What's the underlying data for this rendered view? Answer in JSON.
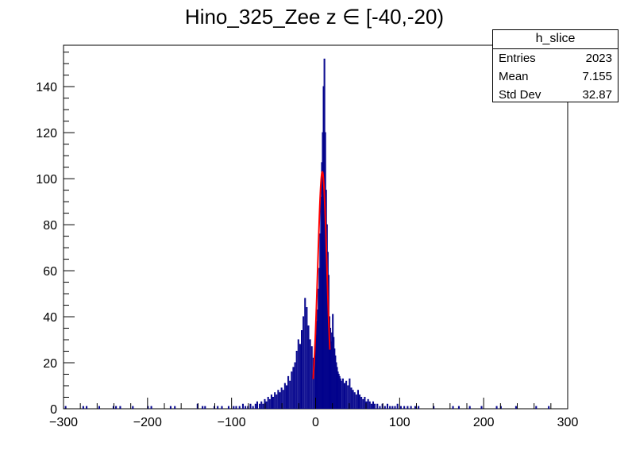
{
  "chart_data": {
    "type": "histogram",
    "title": "Hino_325_Zee z  ∈ [-40,-20)",
    "xlim": [
      -300,
      300
    ],
    "ylim": [
      0,
      158
    ],
    "x_ticks": [
      -300,
      -200,
      -100,
      0,
      100,
      200,
      300
    ],
    "y_ticks": [
      0,
      20,
      40,
      60,
      80,
      100,
      120,
      140
    ],
    "bin_width": 1,
    "line_color": "#00008b",
    "fit_color": "#ff0000",
    "grid": false,
    "legend_position": "top-right",
    "series": [
      {
        "kind": "histogram",
        "bins": [
          [
            -298,
            1
          ],
          [
            -277,
            1
          ],
          [
            -273,
            1
          ],
          [
            -258,
            1
          ],
          [
            -241,
            1
          ],
          [
            -238,
            1
          ],
          [
            -233,
            1
          ],
          [
            -218,
            1
          ],
          [
            -200,
            1
          ],
          [
            -196,
            1
          ],
          [
            -173,
            1
          ],
          [
            -168,
            1
          ],
          [
            -141,
            2
          ],
          [
            -135,
            1
          ],
          [
            -132,
            1
          ],
          [
            -121,
            1
          ],
          [
            -117,
            1
          ],
          [
            -112,
            1
          ],
          [
            -104,
            1
          ],
          [
            -98,
            1
          ],
          [
            -95,
            1
          ],
          [
            -91,
            1
          ],
          [
            -87,
            2
          ],
          [
            -84,
            1
          ],
          [
            -81,
            1
          ],
          [
            -78,
            2
          ],
          [
            -75,
            1
          ],
          [
            -72,
            2
          ],
          [
            -70,
            3
          ],
          [
            -67,
            2
          ],
          [
            -65,
            3
          ],
          [
            -63,
            2
          ],
          [
            -61,
            4
          ],
          [
            -59,
            3
          ],
          [
            -57,
            5
          ],
          [
            -55,
            4
          ],
          [
            -53,
            6
          ],
          [
            -51,
            5
          ],
          [
            -49,
            7
          ],
          [
            -47,
            6
          ],
          [
            -45,
            8
          ],
          [
            -43,
            7
          ],
          [
            -41,
            9
          ],
          [
            -39,
            8
          ],
          [
            -37,
            11
          ],
          [
            -35,
            10
          ],
          [
            -33,
            14
          ],
          [
            -31,
            12
          ],
          [
            -29,
            16
          ],
          [
            -27,
            18
          ],
          [
            -25,
            20
          ],
          [
            -23,
            25
          ],
          [
            -21,
            30
          ],
          [
            -19,
            28
          ],
          [
            -17,
            34
          ],
          [
            -15,
            40
          ],
          [
            -13,
            48
          ],
          [
            -11,
            44
          ],
          [
            -9,
            36
          ],
          [
            -7,
            30
          ],
          [
            -5,
            27
          ],
          [
            -3,
            22
          ],
          [
            -1,
            28
          ],
          [
            0,
            32
          ],
          [
            1,
            38
          ],
          [
            2,
            43
          ],
          [
            3,
            52
          ],
          [
            4,
            61
          ],
          [
            5,
            76
          ],
          [
            6,
            92
          ],
          [
            7,
            107
          ],
          [
            8,
            120
          ],
          [
            9,
            140
          ],
          [
            10,
            152
          ],
          [
            11,
            120
          ],
          [
            12,
            95
          ],
          [
            13,
            80
          ],
          [
            14,
            68
          ],
          [
            15,
            58
          ],
          [
            16,
            40
          ],
          [
            17,
            35
          ],
          [
            18,
            29
          ],
          [
            19,
            33
          ],
          [
            20,
            41
          ],
          [
            21,
            31
          ],
          [
            22,
            26
          ],
          [
            23,
            23
          ],
          [
            24,
            20
          ],
          [
            25,
            18
          ],
          [
            26,
            16
          ],
          [
            27,
            15
          ],
          [
            28,
            14
          ],
          [
            29,
            13
          ],
          [
            30,
            12
          ],
          [
            32,
            13
          ],
          [
            34,
            11
          ],
          [
            36,
            12
          ],
          [
            38,
            10
          ],
          [
            40,
            13
          ],
          [
            42,
            9
          ],
          [
            44,
            8
          ],
          [
            46,
            7
          ],
          [
            48,
            6
          ],
          [
            50,
            8
          ],
          [
            52,
            6
          ],
          [
            54,
            5
          ],
          [
            56,
            4
          ],
          [
            58,
            5
          ],
          [
            60,
            3
          ],
          [
            62,
            4
          ],
          [
            64,
            3
          ],
          [
            66,
            2
          ],
          [
            68,
            3
          ],
          [
            70,
            2
          ],
          [
            73,
            2
          ],
          [
            76,
            1
          ],
          [
            79,
            2
          ],
          [
            82,
            1
          ],
          [
            85,
            2
          ],
          [
            88,
            1
          ],
          [
            91,
            1
          ],
          [
            94,
            1
          ],
          [
            97,
            2
          ],
          [
            101,
            1
          ],
          [
            105,
            1
          ],
          [
            109,
            1
          ],
          [
            113,
            1
          ],
          [
            118,
            1
          ],
          [
            122,
            1
          ],
          [
            140,
            1
          ],
          [
            163,
            1
          ],
          [
            170,
            1
          ],
          [
            183,
            1
          ],
          [
            197,
            1
          ],
          [
            215,
            1
          ],
          [
            220,
            1
          ],
          [
            238,
            1
          ],
          [
            262,
            1
          ],
          [
            277,
            1
          ]
        ]
      },
      {
        "kind": "fit",
        "name": "gaus",
        "x_range": [
          -3,
          17
        ],
        "mean": 8,
        "sigma": 5.4,
        "amplitude": 103
      }
    ]
  },
  "stats_box": {
    "name": "h_slice",
    "rows": [
      {
        "label": "Entries",
        "value": "2023"
      },
      {
        "label": "Mean",
        "value": "7.155"
      },
      {
        "label": "Std Dev",
        "value": "32.87"
      }
    ]
  }
}
